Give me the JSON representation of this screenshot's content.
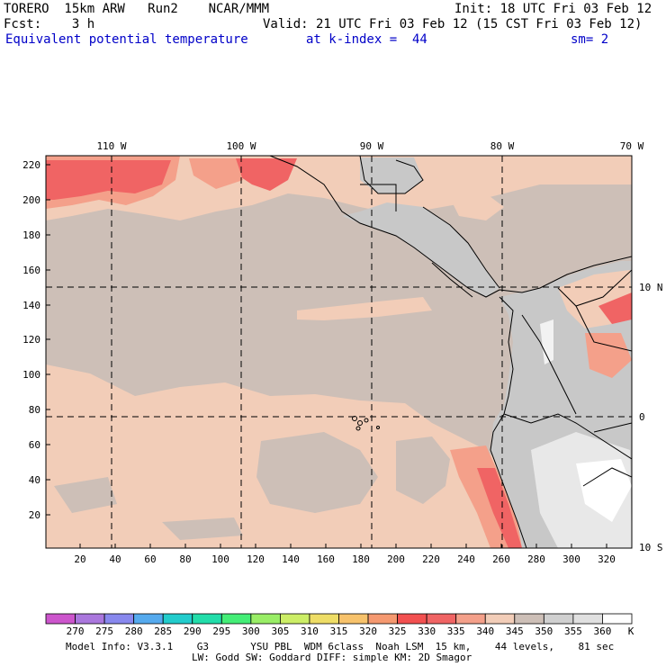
{
  "header": {
    "model": "TORERO  15km ARW   Run2    NCAR/MMM",
    "init": "Init: 18 UTC Fri 03 Feb 12",
    "fcst": "Fcst:    3 h",
    "valid": "Valid: 21 UTC Fri 03 Feb 12 (15 CST Fri 03 Feb 12)",
    "field": "Equivalent potential temperature",
    "level": "at k-index =  44",
    "smooth": "sm= 2"
  },
  "map": {
    "lon_labels": [
      "110 W",
      "100 W",
      "90 W",
      "80 W",
      "70 W"
    ],
    "lat_labels": [
      "10 N",
      "0",
      "10 S"
    ],
    "y_ticks": [
      "20",
      "40",
      "60",
      "80",
      "100",
      "120",
      "140",
      "160",
      "180",
      "200",
      "220"
    ],
    "x_ticks": [
      "20",
      "40",
      "60",
      "80",
      "100",
      "120",
      "140",
      "160",
      "180",
      "200",
      "220",
      "240",
      "260",
      "280",
      "300",
      "320"
    ],
    "ocean_color": "#cdbfb7",
    "land_color": "#c8c8c8"
  },
  "colorbar": {
    "labels": [
      "270",
      "275",
      "280",
      "285",
      "290",
      "295",
      "300",
      "305",
      "310",
      "315",
      "320",
      "325",
      "330",
      "335",
      "340",
      "345",
      "350",
      "355",
      "360"
    ],
    "unit": "K",
    "colors": [
      "#cc55cc",
      "#aa77dd",
      "#8888ee",
      "#55aaee",
      "#22cccc",
      "#22ddaa",
      "#44ee77",
      "#99ee66",
      "#ccee66",
      "#eedd66",
      "#f7c26b",
      "#f59970",
      "#f25050",
      "#f06464",
      "#f4a08a",
      "#f2cdb8",
      "#cdbfb7",
      "#d0d0d0",
      "#e0e0e0",
      "#ffffff"
    ]
  },
  "footer": {
    "line1": "Model Info: V3.3.1    G3       YSU PBL  WDM 6class  Noah LSM  15 km,    44 levels,    81 sec",
    "line2": "LW: Godd SW: Goddard DIFF: simple KM: 2D Smagor"
  }
}
